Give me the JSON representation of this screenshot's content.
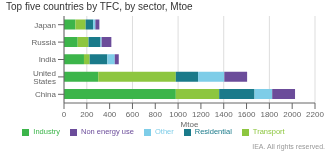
{
  "chart_data": {
    "type": "bar",
    "title": "Top five countries by TFC, by sector, Mtoe",
    "xlabel": "Mtoe",
    "annotations": [
      "IEA. All rights reserved."
    ],
    "orientation": "horizontal",
    "stacked": true,
    "grid": true,
    "legend": "bottom",
    "categories": [
      "China",
      "United States",
      "India",
      "Russia",
      "Japan"
    ],
    "series": [
      {
        "name": "Industry",
        "color": "#3cb54a",
        "values": [
          980,
          300,
          175,
          120,
          100
        ]
      },
      {
        "name": "Transport",
        "color": "#8dc63f",
        "values": [
          380,
          680,
          50,
          95,
          90
        ]
      },
      {
        "name": "Residential",
        "color": "#1a7a8a",
        "values": [
          310,
          195,
          155,
          105,
          65
        ]
      },
      {
        "name": "Other",
        "color": "#7ecde8",
        "values": [
          155,
          230,
          65,
          10,
          20
        ]
      },
      {
        "name": "Non energy use",
        "color": "#6b4c9a",
        "values": [
          200,
          200,
          35,
          85,
          35
        ]
      }
    ],
    "xlim": [
      0,
      2200
    ],
    "xticks": [
      0,
      200,
      400,
      600,
      800,
      1000,
      1200,
      1400,
      1600,
      1800,
      2000,
      2200
    ]
  }
}
